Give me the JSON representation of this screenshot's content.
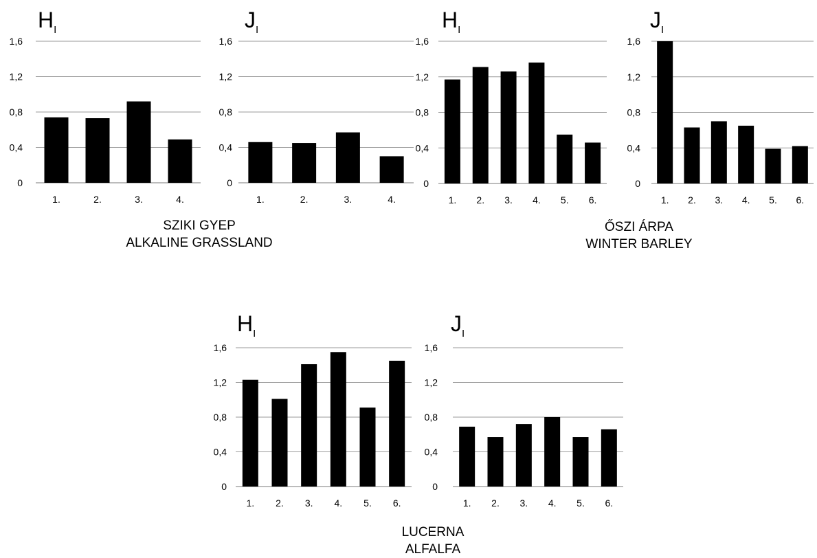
{
  "colors": {
    "bar": "#000000",
    "grid": "#9a9a9a",
    "text": "#000000"
  },
  "groups": [
    {
      "caption_hu": "SZIKI GYEP",
      "caption_en": "ALKALINE GRASSLAND"
    },
    {
      "caption_hu": "ŐSZI ÁRPA",
      "caption_en": "WINTER BARLEY"
    },
    {
      "caption_hu": "LUCERNA",
      "caption_en": "ALFALFA"
    }
  ],
  "chart_data": [
    {
      "type": "bar",
      "group": 0,
      "symbol": "H",
      "subscript": "I",
      "categories": [
        "1.",
        "2.",
        "3.",
        "4."
      ],
      "values": [
        0.74,
        0.73,
        0.92,
        0.49
      ],
      "ylim": [
        0,
        1.6
      ],
      "yticks": [
        "0",
        "0,4",
        "0,8",
        "1,2",
        "1,6"
      ],
      "grid": true,
      "legend": "none"
    },
    {
      "type": "bar",
      "group": 0,
      "symbol": "J",
      "subscript": "I",
      "categories": [
        "1.",
        "2.",
        "3.",
        "4."
      ],
      "values": [
        0.46,
        0.45,
        0.57,
        0.3
      ],
      "ylim": [
        0,
        1.6
      ],
      "yticks": [
        "0",
        "0,4",
        "0,8",
        "1,2",
        "1,6"
      ],
      "grid": true,
      "legend": "none"
    },
    {
      "type": "bar",
      "group": 1,
      "symbol": "H",
      "subscript": "I",
      "categories": [
        "1.",
        "2.",
        "3.",
        "4.",
        "5.",
        "6."
      ],
      "values": [
        1.17,
        1.31,
        1.26,
        1.36,
        0.55,
        0.46
      ],
      "ylim": [
        0,
        1.6
      ],
      "yticks": [
        "0",
        "0,4",
        "0,8",
        "1,2",
        "1,6"
      ],
      "grid": true,
      "legend": "none"
    },
    {
      "type": "bar",
      "group": 1,
      "symbol": "J",
      "subscript": "I",
      "categories": [
        "1.",
        "2.",
        "3.",
        "4.",
        "5.",
        "6."
      ],
      "values": [
        1.6,
        0.63,
        0.7,
        0.65,
        0.39,
        0.42
      ],
      "ylim": [
        0,
        1.6
      ],
      "yticks": [
        "0",
        "0,4",
        "0,8",
        "1,2",
        "1,6"
      ],
      "grid": true,
      "legend": "none"
    },
    {
      "type": "bar",
      "group": 2,
      "symbol": "H",
      "subscript": "I",
      "categories": [
        "1.",
        "2.",
        "3.",
        "4.",
        "5.",
        "6."
      ],
      "values": [
        1.23,
        1.01,
        1.41,
        1.55,
        0.91,
        1.45
      ],
      "ylim": [
        0,
        1.6
      ],
      "yticks": [
        "0",
        "0,4",
        "0,8",
        "1,2",
        "1,6"
      ],
      "grid": true,
      "legend": "none"
    },
    {
      "type": "bar",
      "group": 2,
      "symbol": "J",
      "subscript": "I",
      "categories": [
        "1.",
        "2.",
        "3.",
        "4.",
        "5.",
        "6."
      ],
      "values": [
        0.69,
        0.57,
        0.72,
        0.8,
        0.57,
        0.66
      ],
      "ylim": [
        0,
        1.6
      ],
      "yticks": [
        "0",
        "0,4",
        "0,8",
        "1,2",
        "1,6"
      ],
      "grid": true,
      "legend": "none"
    }
  ]
}
